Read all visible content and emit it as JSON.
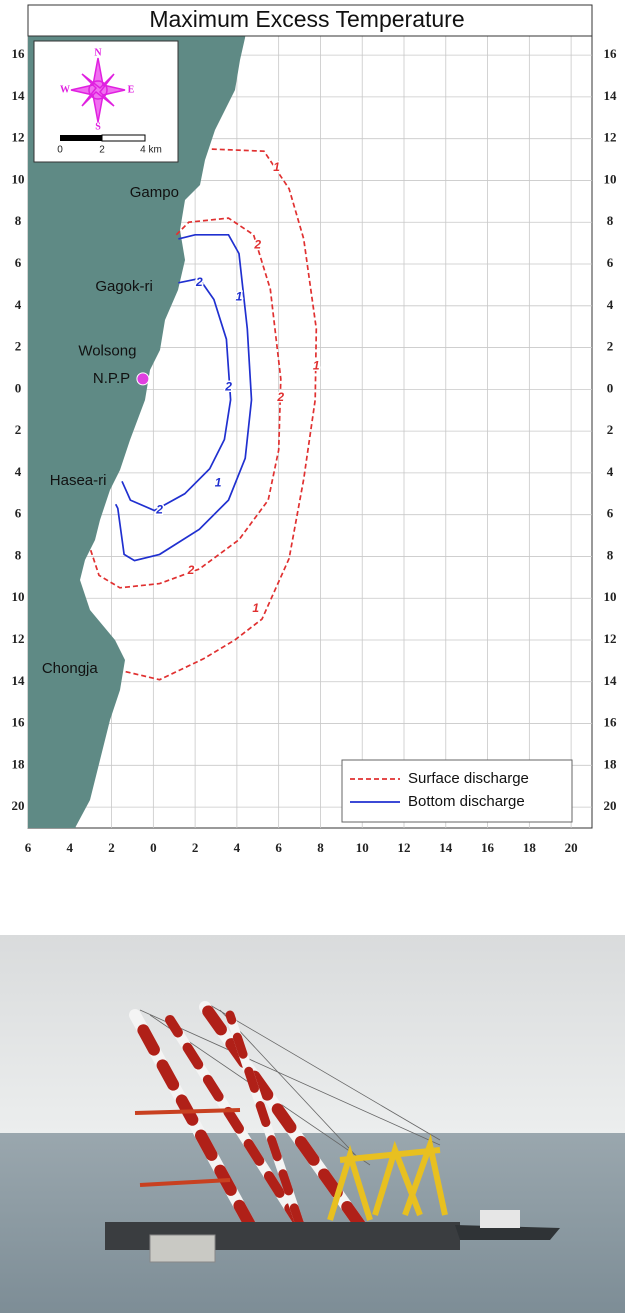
{
  "chart_data": {
    "type": "line",
    "title": "Maximum Excess Temperature",
    "xlim": [
      -6,
      21
    ],
    "ylim": [
      -21,
      18.4
    ],
    "xticks": [
      {
        "value": -6,
        "label": "6"
      },
      {
        "value": -4,
        "label": "4"
      },
      {
        "value": -2,
        "label": "2"
      },
      0,
      2,
      4,
      6,
      8,
      10,
      12,
      14,
      16,
      18,
      20
    ],
    "yticks": [
      16,
      14,
      12,
      10,
      8,
      6,
      4,
      2,
      0,
      {
        "value": -2,
        "label": "2"
      },
      {
        "value": -4,
        "label": "4"
      },
      {
        "value": -6,
        "label": "6"
      },
      {
        "value": -8,
        "label": "8"
      },
      {
        "value": -10,
        "label": "10"
      },
      {
        "value": -12,
        "label": "12"
      },
      {
        "value": -14,
        "label": "14"
      },
      {
        "value": -16,
        "label": "16"
      },
      {
        "value": -18,
        "label": "18"
      },
      {
        "value": -20,
        "label": "20"
      }
    ],
    "grid": true,
    "legend": "lower right",
    "land_color": "#5f8a85",
    "series": [
      {
        "name": "Surface discharge",
        "color": "#e03030",
        "linestyle": "dashed",
        "lines": [
          {
            "x": [
              2.8,
              5.3,
              6.5,
              7.2,
              7.8,
              7.75,
              7.2,
              6.5,
              5.2,
              3.9,
              2.4,
              0.3,
              -1.4
            ],
            "values": [
              11.5,
              11.4,
              9.6,
              7.2,
              2.9,
              -0.5,
              -4.3,
              -8.1,
              -11,
              -12,
              -12.9,
              -13.9,
              -13.5
            ],
            "labels": [
              {
                "text": "1",
                "x": 5.9,
                "y": 10.6
              },
              {
                "text": "1",
                "x": 7.8,
                "y": 1.1
              },
              {
                "text": "1",
                "x": 4.9,
                "y": -10.5
              }
            ]
          },
          {
            "x": [
              1.1,
              1.7,
              3.6,
              4.8,
              5.6,
              6.1,
              6.0,
              5.5,
              4.1,
              2.2,
              0.3,
              -1.6,
              -2.6,
              -3.0
            ],
            "values": [
              7.4,
              8.0,
              8.2,
              7.4,
              4.8,
              0.5,
              -2.9,
              -5.3,
              -7.2,
              -8.6,
              -9.3,
              -9.5,
              -8.9,
              -7.7
            ],
            "labels": [
              {
                "text": "2",
                "x": 5.0,
                "y": 6.9
              },
              {
                "text": "2",
                "x": 6.1,
                "y": -0.4
              },
              {
                "text": "2",
                "x": 1.8,
                "y": -8.7
              }
            ]
          }
        ]
      },
      {
        "name": "Bottom discharge",
        "color": "#2030d0",
        "linestyle": "solid",
        "lines": [
          {
            "x": [
              1.2,
              2.0,
              3.6,
              4.1,
              4.5,
              4.7,
              4.4,
              3.6,
              2.2,
              0.3,
              -0.9,
              -1.4,
              -1.7,
              -1.8
            ],
            "values": [
              7.2,
              7.4,
              7.4,
              6.5,
              2.9,
              -0.5,
              -3.3,
              -5.3,
              -6.7,
              -7.9,
              -8.2,
              -7.9,
              -5.7,
              -5.5
            ],
            "labels": [
              {
                "text": "1",
                "x": 4.1,
                "y": 4.4
              },
              {
                "text": "1",
                "x": 3.1,
                "y": -4.5
              }
            ]
          },
          {
            "x": [
              1.2,
              2.2,
              2.9,
              3.5,
              3.7,
              3.4,
              2.7,
              1.5,
              0.05,
              -1.1,
              -1.5
            ],
            "values": [
              5.1,
              5.3,
              4.3,
              2.4,
              -0.5,
              -2.4,
              -3.8,
              -5.0,
              -5.8,
              -5.3,
              -4.4
            ],
            "labels": [
              {
                "text": "2",
                "x": 2.2,
                "y": 5.1
              },
              {
                "text": "2",
                "x": 3.6,
                "y": 0.1
              },
              {
                "text": "2",
                "x": 0.3,
                "y": -5.8
              }
            ]
          }
        ]
      }
    ],
    "places": [
      {
        "text": "Gampo",
        "x": 0.05,
        "y": 9.4
      },
      {
        "text": "Gagok-ri",
        "x": -1.4,
        "y": 4.9
      },
      {
        "text": "Wolsong",
        "x": -2.2,
        "y": 1.8
      },
      {
        "text": "N.P.P",
        "x": -2.0,
        "y": 0.5
      },
      {
        "text": "Hasea-ri",
        "x": -3.6,
        "y": -4.4
      },
      {
        "text": "Chongja",
        "x": -4.0,
        "y": -13.4
      }
    ],
    "plant": {
      "x": -0.5,
      "y": 0.5,
      "color": "#e040e0"
    },
    "inset": {
      "north": "N",
      "south": "S",
      "east": "E",
      "west": "W",
      "scale_labels": [
        "0",
        "2",
        "4 km"
      ]
    }
  }
}
